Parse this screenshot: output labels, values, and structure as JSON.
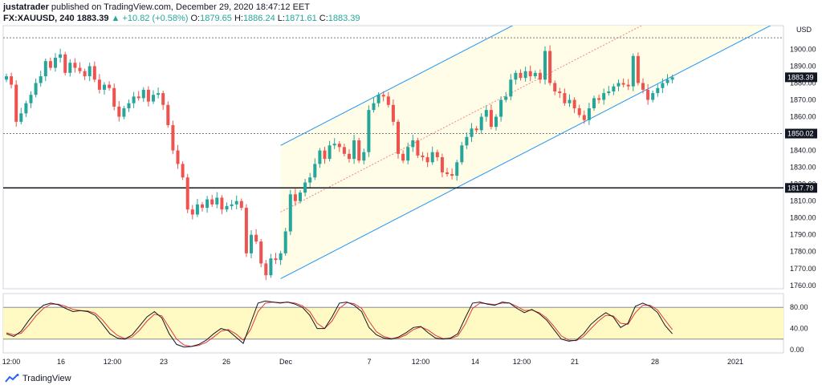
{
  "header": {
    "publisher": "justatrader",
    "published_text": "published on TradingView.com, December 29, 2020 18:47:12 EET",
    "symbol": "FX:XAUUSD, 240",
    "last": "1883.39",
    "change": "▲ +10.82 (+0.58%)",
    "o_label": "O:",
    "o_value": "1879.65",
    "h_label": "H:",
    "h_value": "1886.24",
    "l_label": "L:",
    "l_value": "1871.61",
    "c_label": "C:",
    "c_value": "1883.39"
  },
  "footer": {
    "brand": "TradingView",
    "logo": "tradingview-logo-icon"
  },
  "colors": {
    "up": "#26a69a",
    "down": "#ef5350",
    "channel": "#2196f3",
    "channel_fill": "#fffde7",
    "osc_band": "#fff9c4",
    "stoch_k": "#131722",
    "stoch_d": "#e53935"
  },
  "chart_data": [
    {
      "type": "candlestick",
      "ylim": [
        1758,
        1914
      ],
      "ytick_labels": [
        "1760.00",
        "1770.00",
        "1780.00",
        "1790.00",
        "1800.00",
        "1810.00",
        "1820.00",
        "1830.00",
        "1840.00",
        "1850.00",
        "1860.00",
        "1870.00",
        "1880.00",
        "1890.00",
        "1900.00"
      ],
      "unit_label": "USD",
      "xtick_labels": [
        "12:00",
        "16",
        "12:00",
        "23",
        "26",
        "Dec",
        "7",
        "12:00",
        "14",
        "12:00",
        "21",
        "28",
        "2021"
      ],
      "price_labels": [
        "1883.39",
        "1850.02",
        "1817.79"
      ],
      "horizontal_levels": [
        1906.8,
        1850.02,
        1817.79
      ],
      "channel": {
        "start_price": 1764,
        "end_price": 1884,
        "upper_offset": 79
      },
      "closes": [
        1884,
        1879,
        1857,
        1862,
        1868,
        1873,
        1880,
        1884,
        1893,
        1889,
        1895,
        1897,
        1886,
        1892,
        1889,
        1887,
        1884,
        1890,
        1882,
        1876,
        1879,
        1877,
        1866,
        1860,
        1865,
        1868,
        1872,
        1871,
        1876,
        1869,
        1873,
        1874,
        1867,
        1855,
        1840,
        1832,
        1824,
        1805,
        1802,
        1808,
        1806,
        1811,
        1808,
        1812,
        1805,
        1807,
        1808,
        1810,
        1806,
        1779,
        1790,
        1786,
        1773,
        1766,
        1776,
        1775,
        1779,
        1792,
        1814,
        1810,
        1815,
        1821,
        1824,
        1832,
        1840,
        1835,
        1843,
        1844,
        1842,
        1838,
        1835,
        1846,
        1834,
        1839,
        1864,
        1868,
        1873,
        1872,
        1867,
        1857,
        1838,
        1834,
        1842,
        1846,
        1837,
        1836,
        1833,
        1839,
        1836,
        1827,
        1826,
        1825,
        1833,
        1843,
        1848,
        1853,
        1852,
        1860,
        1864,
        1854,
        1860,
        1870,
        1872,
        1882,
        1886,
        1883,
        1887,
        1884,
        1886,
        1882,
        1899,
        1880,
        1875,
        1874,
        1868,
        1870,
        1865,
        1861,
        1858,
        1865,
        1871,
        1870,
        1874,
        1875,
        1878,
        1880,
        1879,
        1878,
        1896,
        1880,
        1876,
        1870,
        1874,
        1877,
        1880,
        1882,
        1883.39
      ]
    },
    {
      "type": "line",
      "name": "stochastic",
      "ylim": [
        0,
        100
      ],
      "ytick_labels": [
        "0.00",
        "40.00",
        "80.00"
      ],
      "band": [
        20,
        80
      ],
      "k": [
        30,
        25,
        35,
        55,
        72,
        84,
        88,
        85,
        78,
        72,
        74,
        72,
        65,
        48,
        30,
        22,
        20,
        28,
        45,
        62,
        72,
        60,
        30,
        10,
        5,
        6,
        10,
        18,
        30,
        40,
        36,
        24,
        12,
        50,
        88,
        92,
        90,
        88,
        90,
        86,
        80,
        65,
        40,
        40,
        62,
        88,
        90,
        84,
        72,
        42,
        28,
        22,
        20,
        24,
        32,
        42,
        44,
        32,
        22,
        20,
        22,
        30,
        60,
        88,
        90,
        86,
        84,
        90,
        88,
        78,
        70,
        76,
        68,
        56,
        38,
        20,
        16,
        18,
        30,
        48,
        60,
        70,
        62,
        42,
        50,
        82,
        88,
        82,
        70,
        46,
        30
      ],
      "d": [
        32,
        28,
        31,
        46,
        64,
        78,
        86,
        86,
        82,
        76,
        74,
        73,
        69,
        56,
        39,
        27,
        21,
        24,
        37,
        54,
        67,
        64,
        42,
        20,
        9,
        6,
        8,
        14,
        24,
        35,
        38,
        30,
        18,
        38,
        72,
        88,
        90,
        89,
        90,
        88,
        83,
        72,
        50,
        40,
        54,
        78,
        89,
        87,
        78,
        54,
        34,
        25,
        21,
        22,
        28,
        38,
        43,
        37,
        27,
        21,
        21,
        26,
        48,
        78,
        88,
        87,
        85,
        88,
        88,
        82,
        74,
        75,
        70,
        60,
        44,
        26,
        18,
        17,
        25,
        40,
        54,
        65,
        64,
        50,
        48,
        70,
        84,
        84,
        75,
        56,
        38
      ]
    }
  ]
}
